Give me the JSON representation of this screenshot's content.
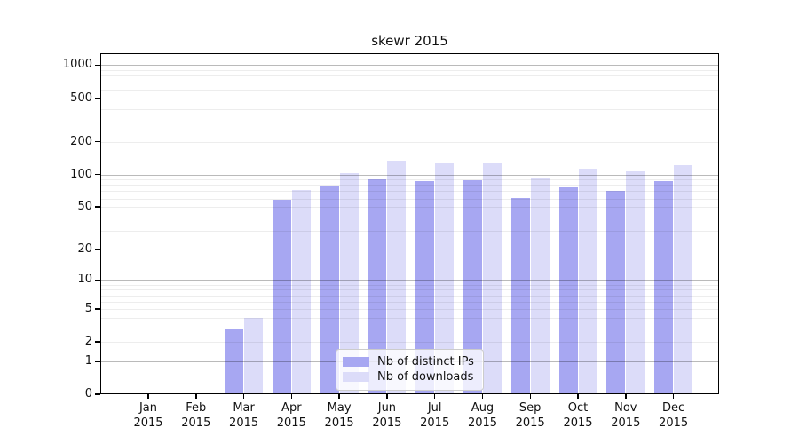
{
  "chart_data": {
    "type": "bar",
    "title": "skewr 2015",
    "categories": [
      "Jan 2015",
      "Feb 2015",
      "Mar 2015",
      "Apr 2015",
      "May 2015",
      "Jun 2015",
      "Jul 2015",
      "Aug 2015",
      "Sep 2015",
      "Oct 2015",
      "Nov 2015",
      "Dec 2015"
    ],
    "series": [
      {
        "name": "Nb of distinct IPs",
        "color": "#a7a7f2",
        "values": [
          0,
          0,
          3,
          58,
          77,
          90,
          87,
          89,
          61,
          76,
          71,
          86
        ]
      },
      {
        "name": "Nb of downloads",
        "color": "#dcdcf9",
        "values": [
          0,
          0,
          4,
          72,
          102,
          135,
          128,
          126,
          94,
          113,
          106,
          121
        ]
      }
    ],
    "xlabel": "",
    "ylabel": "",
    "yscale": "log1p",
    "ylim": [
      0,
      1285
    ],
    "yticks": [
      0,
      1,
      2,
      5,
      10,
      20,
      50,
      100,
      200,
      500,
      1000
    ],
    "grid": "horizontal, minor and major log lines",
    "legend_position": "lower center"
  },
  "colors": {
    "background": "#ffffff",
    "bar_distinct_ips": "#a7a7f2",
    "bar_downloads": "#dcdcf9",
    "major_grid": "#bababa",
    "minor_grid": "#ededed",
    "spine": "#000000",
    "legend_border": "#cccccc"
  }
}
